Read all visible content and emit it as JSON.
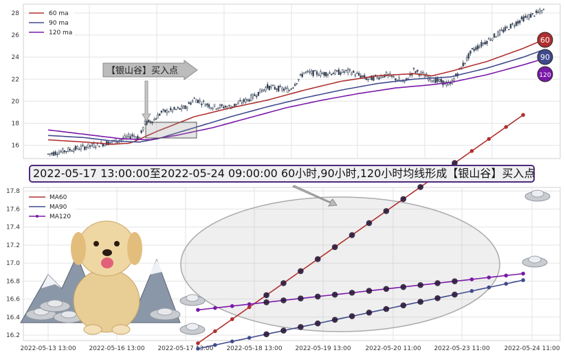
{
  "colors": {
    "ma60": "#b03030",
    "ma90": "#404a8c",
    "ma120": "#7a18a8",
    "candle": "#3a4658",
    "grid": "#e3e3e3"
  },
  "badges": [
    "60",
    "90",
    "120"
  ],
  "callout_text": "2022-05-17 13:00:00至2022-05-24 09:00:00 60小时,90小时,120小时均线形成【银山谷】买入点",
  "arrow_label": "【银山谷】买入点",
  "chart_data": [
    {
      "type": "line",
      "panel": "price",
      "ylim": [
        14.8,
        28.8
      ],
      "yticks": [
        16,
        18,
        20,
        22,
        24,
        26,
        28
      ],
      "legend": {
        "placement": "top-left",
        "entries": [
          "60 ma",
          "90 ma",
          "120 ma"
        ]
      },
      "grid": true,
      "n_bars": 240,
      "price_path": [
        [
          0,
          15.2
        ],
        [
          12,
          15.6
        ],
        [
          25,
          16.0
        ],
        [
          38,
          16.4
        ],
        [
          46,
          16.9
        ],
        [
          50,
          16.7
        ],
        [
          53,
          18.0
        ],
        [
          58,
          18.3
        ],
        [
          62,
          19.0
        ],
        [
          75,
          19.4
        ],
        [
          80,
          20.2
        ],
        [
          90,
          19.5
        ],
        [
          100,
          19.5
        ],
        [
          110,
          20.2
        ],
        [
          120,
          21.3
        ],
        [
          132,
          21.0
        ],
        [
          140,
          22.6
        ],
        [
          150,
          22.5
        ],
        [
          165,
          22.7
        ],
        [
          175,
          22.0
        ],
        [
          185,
          22.4
        ],
        [
          195,
          21.7
        ],
        [
          200,
          22.8
        ],
        [
          210,
          22.0
        ],
        [
          220,
          21.5
        ],
        [
          232,
          24.6
        ],
        [
          245,
          26.0
        ],
        [
          260,
          27.5
        ],
        [
          271,
          28.2
        ]
      ],
      "series": [
        {
          "name": "60 ma",
          "path": [
            [
              0,
              16.5
            ],
            [
              20,
              16.3
            ],
            [
              35,
              16.1
            ],
            [
              45,
              16.2
            ],
            [
              60,
              17.3
            ],
            [
              80,
              18.6
            ],
            [
              100,
              19.4
            ],
            [
              120,
              20.1
            ],
            [
              140,
              21.0
            ],
            [
              160,
              21.8
            ],
            [
              180,
              22.3
            ],
            [
              200,
              22.5
            ],
            [
              210,
              22.3
            ],
            [
              220,
              22.7
            ],
            [
              240,
              23.6
            ],
            [
              260,
              24.8
            ],
            [
              270,
              25.5
            ]
          ]
        },
        {
          "name": "90 ma",
          "path": [
            [
              0,
              16.9
            ],
            [
              20,
              16.7
            ],
            [
              35,
              16.4
            ],
            [
              50,
              16.3
            ],
            [
              60,
              16.6
            ],
            [
              80,
              17.6
            ],
            [
              100,
              18.6
            ],
            [
              120,
              19.5
            ],
            [
              140,
              20.3
            ],
            [
              160,
              21.0
            ],
            [
              180,
              21.6
            ],
            [
              200,
              22.0
            ],
            [
              220,
              22.2
            ],
            [
              240,
              23.0
            ],
            [
              260,
              24.0
            ],
            [
              270,
              24.6
            ]
          ]
        },
        {
          "name": "120 ma",
          "path": [
            [
              0,
              17.4
            ],
            [
              20,
              17.0
            ],
            [
              40,
              16.6
            ],
            [
              55,
              16.5
            ],
            [
              70,
              16.9
            ],
            [
              90,
              17.6
            ],
            [
              110,
              18.5
            ],
            [
              130,
              19.4
            ],
            [
              150,
              20.1
            ],
            [
              170,
              20.7
            ],
            [
              190,
              21.2
            ],
            [
              210,
              21.5
            ],
            [
              220,
              21.7
            ],
            [
              240,
              22.4
            ],
            [
              260,
              23.3
            ],
            [
              270,
              23.8
            ]
          ]
        }
      ]
    },
    {
      "type": "line",
      "panel": "zoom",
      "x_tick_labels": [
        "2022-05-13 13:00",
        "2022-05-16 13:00",
        "2022-05-17 13:00",
        "2022-05-18 13:00",
        "2022-05-19 13:00",
        "2022-05-20 11:00",
        "2022-05-23 11:00",
        "2022-05-24 11:00"
      ],
      "ylim": [
        16.14,
        17.84
      ],
      "yticks": [
        16.2,
        16.4,
        16.6,
        16.8,
        17.0,
        17.2,
        17.4,
        17.6,
        17.8
      ],
      "legend": {
        "placement": "top-left",
        "entries": [
          "MA60",
          "MA90",
          "MA120"
        ]
      },
      "grid": true,
      "points_window": [
        8,
        31
      ],
      "series": [
        {
          "name": "MA60",
          "start": 16.11,
          "step": 0.0667,
          "count": 39
        },
        {
          "name": "MA90",
          "start": 16.05,
          "step": 0.02,
          "count": 39
        },
        {
          "name": "MA120",
          "start": 16.48,
          "step": 0.0106,
          "count": 39
        }
      ]
    }
  ]
}
